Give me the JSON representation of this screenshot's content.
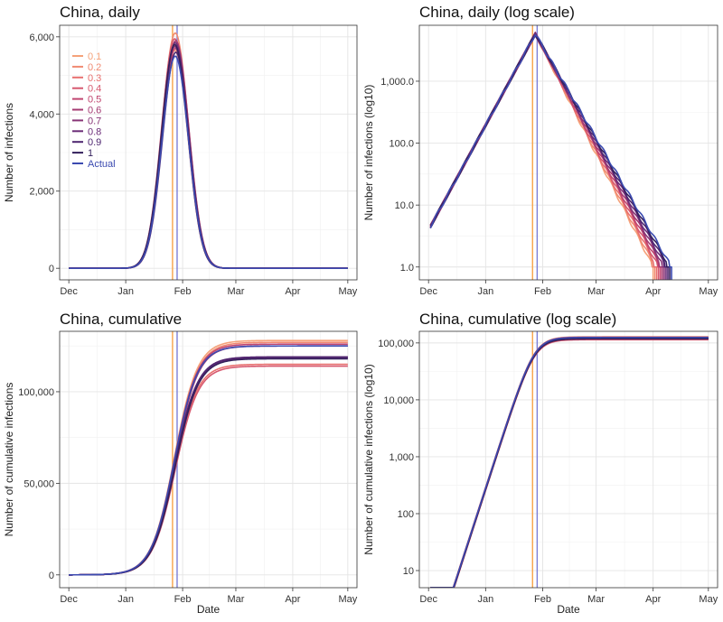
{
  "figure": {
    "xlabel": "Date",
    "x_months": [
      "Dec",
      "Jan",
      "Feb",
      "Mar",
      "Apr",
      "May"
    ],
    "series_names": [
      "0.1",
      "0.2",
      "0.3",
      "0.4",
      "0.5",
      "0.6",
      "0.7",
      "0.8",
      "0.9",
      "1",
      "Actual"
    ],
    "series_colors": [
      "#f5a27a",
      "#f08a72",
      "#e8706f",
      "#d6586e",
      "#c0456f",
      "#a43a72",
      "#873476",
      "#6b2c78",
      "#4e2670",
      "#33205c",
      "#3b4ab0"
    ],
    "vline_colors": [
      "#f7a34a",
      "#7b7fd6"
    ],
    "vline_days": [
      56.5,
      59.0
    ]
  },
  "chart_data": [
    {
      "type": "line",
      "title": "China, daily",
      "xlabel": "",
      "ylabel": "Number of infections",
      "yscale": "linear",
      "ylim": [
        -300,
        6300
      ],
      "yticks": [
        0,
        2000,
        4000,
        6000
      ],
      "ytick_labels": [
        "0",
        "2,000",
        "4,000",
        "6,000"
      ],
      "xlim_days": [
        -5,
        157
      ],
      "x_unit": "days since Dec 1",
      "legend_position": "top-left",
      "peak_day": 58,
      "peak_values": [
        5650,
        6100,
        5800,
        5950,
        5700,
        5900,
        5750,
        5850,
        5600,
        5800,
        5500
      ]
    },
    {
      "type": "line",
      "title": "China, daily (log scale)",
      "xlabel": "",
      "ylabel": "Number of infections (log10)",
      "yscale": "log10",
      "ylim": [
        0.62,
        8000
      ],
      "yticks": [
        1,
        10,
        100,
        1000
      ],
      "ytick_labels": [
        "1.0",
        "10.0",
        "100.0",
        "1,000.0"
      ],
      "xlim_days": [
        -5,
        157
      ],
      "x_unit": "days since Dec 1",
      "start_value": 4.5,
      "peak_day": 58,
      "peak_value": 5800,
      "end_day_range": [
        122,
        132
      ]
    },
    {
      "type": "line",
      "title": "China, cumulative",
      "xlabel": "Date",
      "ylabel": "Number of cumulative infections",
      "yscale": "linear",
      "ylim": [
        -7000,
        133000
      ],
      "yticks": [
        0,
        50000,
        100000
      ],
      "ytick_labels": [
        "0",
        "50,000",
        "100,000"
      ],
      "xlim_days": [
        -5,
        157
      ],
      "x_unit": "days since Dec 1",
      "final_values": [
        128000,
        127000,
        115000,
        114000,
        126000,
        125000,
        119000,
        118500,
        119000,
        118000,
        125000
      ]
    },
    {
      "type": "line",
      "title": "China, cumulative (log scale)",
      "xlabel": "Date",
      "ylabel": "Number of cumulative infections (log10)",
      "yscale": "log10",
      "ylim": [
        5,
        160000
      ],
      "yticks": [
        10,
        100,
        1000,
        10000,
        100000
      ],
      "ytick_labels": [
        "10",
        "100",
        "1,000",
        "10,000",
        "100,000"
      ],
      "xlim_days": [
        -5,
        157
      ],
      "x_unit": "days since Dec 1",
      "start_value": 5,
      "final_values": [
        128000,
        127000,
        115000,
        114000,
        126000,
        125000,
        119000,
        118500,
        119000,
        118000,
        125000
      ]
    }
  ]
}
